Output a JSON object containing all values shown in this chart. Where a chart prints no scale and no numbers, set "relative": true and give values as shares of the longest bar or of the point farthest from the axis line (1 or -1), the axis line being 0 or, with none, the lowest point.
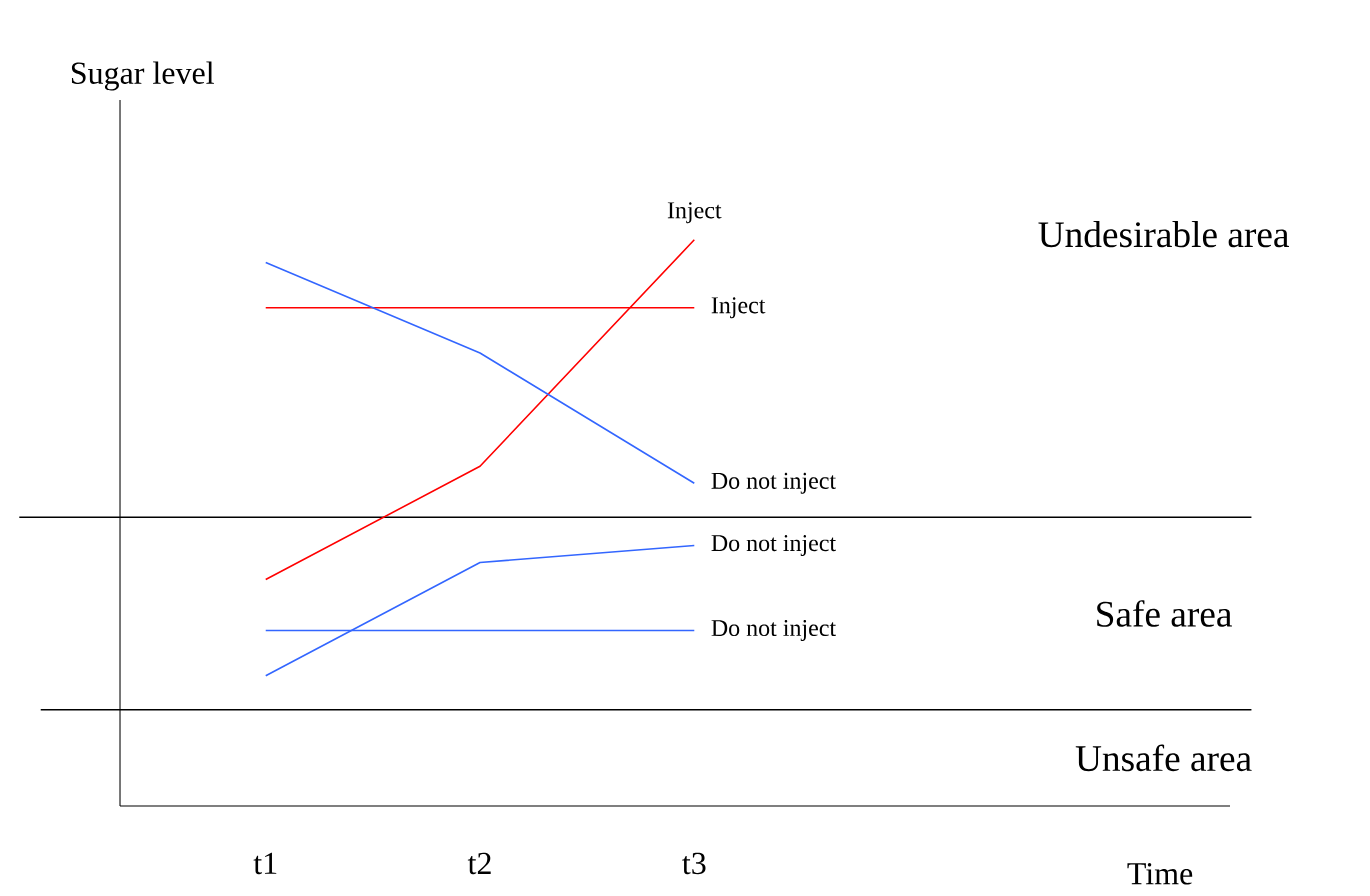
{
  "chart_data": {
    "type": "line",
    "relative": true,
    "ylabel": "Sugar level",
    "categories": [
      "t1",
      "t2",
      "t3"
    ],
    "series": [
      {
        "name": "Inject",
        "color": "#ff0000",
        "values": [
          0.4,
          0.6,
          1.0
        ]
      },
      {
        "name": "Inject",
        "color": "#ff0000",
        "values": [
          0.88,
          0.88,
          0.88
        ]
      },
      {
        "name": "Do not inject",
        "color": "#3366ff",
        "values": [
          0.96,
          0.8,
          0.57
        ]
      },
      {
        "name": "Do not inject",
        "color": "#3366ff",
        "values": [
          0.23,
          0.43,
          0.46
        ]
      },
      {
        "name": "Do not inject",
        "color": "#3366ff",
        "values": [
          0.31,
          0.31,
          0.31
        ]
      }
    ],
    "ref_lines": [
      {
        "axis": "y",
        "value": 0.51
      },
      {
        "axis": "y",
        "value": 0.17
      }
    ],
    "annotations": [
      "Undesirable area",
      "Safe area",
      "Unsafe area",
      "Time"
    ]
  }
}
